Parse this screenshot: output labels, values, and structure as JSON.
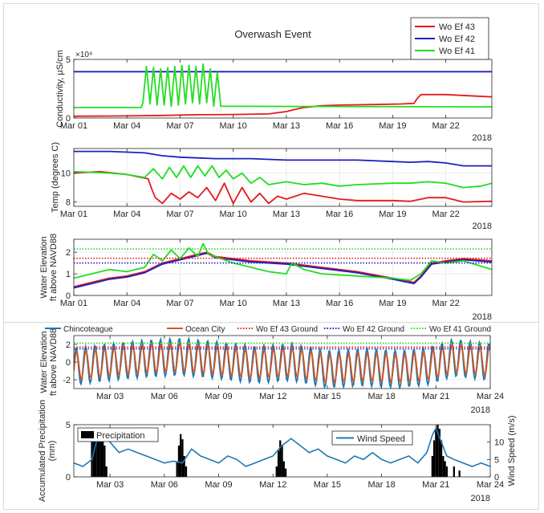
{
  "figure_title": "Overwash Event",
  "year_label": "2018",
  "colors": {
    "ef43": "#e31a1c",
    "ef42": "#1f1fbf",
    "ef41": "#22dd22",
    "chincoteague": "#1f77b4",
    "ocean_city": "#d95319",
    "precip": "#000000",
    "wind": "#1f77b4"
  },
  "chart_data": [
    {
      "id": "conductivity",
      "type": "line",
      "title": "Overwash Event",
      "ylabel": "Conductivity, μS/cm",
      "exponent_label": "×10⁴",
      "ylim": [
        0,
        5
      ],
      "yticks": [
        0,
        5
      ],
      "xlim": [
        0,
        23.6
      ],
      "xticks": [
        0,
        3,
        6,
        9,
        12,
        15,
        18,
        21
      ],
      "xticklabels": [
        "Mar 01",
        "Mar 04",
        "Mar 07",
        "Mar 10",
        "Mar 13",
        "Mar 16",
        "Mar 19",
        "Mar 22"
      ],
      "grid": false,
      "legend": {
        "position": "top-right",
        "entries": [
          "Wo Ef 43",
          "Wo Ef 42",
          "Wo Ef 41"
        ]
      },
      "series": [
        {
          "name": "Wo Ef 43",
          "color_key": "ef43",
          "x": [
            0,
            3,
            5,
            7,
            9,
            11,
            11.5,
            12,
            12.5,
            13,
            14,
            15,
            17,
            18.5,
            19.2,
            19.4,
            19.6,
            21,
            23.6
          ],
          "y": [
            0.15,
            0.18,
            0.22,
            0.28,
            0.3,
            0.35,
            0.45,
            0.55,
            0.75,
            0.9,
            1.05,
            1.1,
            1.15,
            1.2,
            1.25,
            1.7,
            2.0,
            2.0,
            1.8
          ]
        },
        {
          "name": "Wo Ef 42",
          "color_key": "ef42",
          "x": [
            0,
            23.6
          ],
          "y": [
            3.95,
            3.95
          ]
        },
        {
          "name": "Wo Ef 41",
          "color_key": "ef41",
          "x": [
            0,
            3.8,
            3.9,
            4.1,
            4.3,
            4.5,
            4.7,
            4.9,
            5.1,
            5.3,
            5.5,
            5.7,
            5.9,
            6.1,
            6.3,
            6.5,
            6.7,
            6.9,
            7.1,
            7.3,
            7.5,
            7.7,
            7.9,
            8.1,
            8.3,
            8.5,
            9,
            23.6
          ],
          "y": [
            0.9,
            0.9,
            1.3,
            4.4,
            1.2,
            4.3,
            1.1,
            4.2,
            1.1,
            4.3,
            1.0,
            4.4,
            1.1,
            4.5,
            1.2,
            4.5,
            1.3,
            4.4,
            1.2,
            4.6,
            1.3,
            4.2,
            1.0,
            3.9,
            1.0,
            1.0,
            1.0,
            0.95
          ]
        }
      ]
    },
    {
      "id": "temperature",
      "type": "line",
      "ylabel": "Temp (degrees C)",
      "ylim": [
        7.7,
        11.7
      ],
      "yticks": [
        8,
        10
      ],
      "xlim": [
        0,
        23.6
      ],
      "xticks": [
        0,
        3,
        6,
        9,
        12,
        15,
        18,
        21
      ],
      "xticklabels": [
        "Mar 01",
        "Mar 04",
        "Mar 07",
        "Mar 10",
        "Mar 13",
        "Mar 16",
        "Mar 19",
        "Mar 22"
      ],
      "grid": true,
      "series": [
        {
          "name": "Wo Ef 43",
          "color_key": "ef43",
          "x": [
            0,
            1.5,
            3,
            4.2,
            4.4,
            4.6,
            5,
            5.5,
            6,
            6.5,
            7,
            7.5,
            8,
            8.5,
            9,
            9.5,
            10,
            10.5,
            11,
            11.5,
            12,
            13,
            14,
            15,
            16,
            18,
            19,
            20,
            21,
            22,
            23.6
          ],
          "y": [
            10.0,
            10.1,
            9.9,
            9.6,
            8.9,
            8.3,
            7.9,
            8.6,
            8.2,
            8.7,
            8.3,
            9.0,
            8.1,
            9.3,
            7.9,
            9.0,
            8.0,
            8.6,
            7.9,
            8.4,
            8.2,
            8.6,
            8.4,
            8.2,
            8.1,
            8.1,
            8.05,
            8.3,
            8.3,
            8.0,
            8.05
          ]
        },
        {
          "name": "Wo Ef 42",
          "color_key": "ef42",
          "x": [
            0,
            2,
            4,
            5,
            6,
            8,
            10,
            12,
            14,
            16,
            18,
            19,
            20,
            21,
            22,
            23.6
          ],
          "y": [
            11.5,
            11.5,
            11.4,
            11.2,
            11.1,
            11.0,
            11.0,
            10.9,
            10.9,
            10.9,
            10.8,
            10.75,
            10.8,
            10.7,
            10.5,
            10.5
          ]
        },
        {
          "name": "Wo Ef 41",
          "color_key": "ef41",
          "x": [
            0,
            2,
            3,
            4,
            4.5,
            5,
            5.4,
            5.8,
            6.2,
            6.6,
            7,
            7.4,
            7.8,
            8.2,
            8.6,
            9,
            9.5,
            10,
            10.5,
            11,
            12,
            13,
            14,
            15,
            16,
            18,
            19,
            20,
            21,
            22,
            23,
            23.6
          ],
          "y": [
            10.1,
            10.0,
            9.9,
            9.7,
            10.3,
            9.6,
            10.4,
            9.7,
            10.5,
            9.7,
            10.5,
            9.8,
            10.5,
            9.7,
            10.2,
            9.6,
            10.0,
            9.3,
            9.7,
            9.2,
            9.4,
            9.2,
            9.3,
            9.1,
            9.2,
            9.3,
            9.3,
            9.4,
            9.3,
            9.0,
            9.1,
            9.3
          ]
        }
      ]
    },
    {
      "id": "water_elevation_wells",
      "type": "line",
      "ylabel": "Water Elevation",
      "ylabel2": "ft above NAVD88",
      "ylim": [
        0,
        2.6
      ],
      "yticks": [
        0,
        1,
        2
      ],
      "xlim": [
        0,
        23.6
      ],
      "xticks": [
        0,
        3,
        6,
        9,
        12,
        15,
        18,
        21
      ],
      "xticklabels": [
        "Mar 01",
        "Mar 04",
        "Mar 07",
        "Mar 10",
        "Mar 13",
        "Mar 16",
        "Mar 19",
        "Mar 22"
      ],
      "grid": true,
      "series": [
        {
          "name": "Wo Ef 43",
          "color_key": "ef43",
          "x": [
            0,
            1,
            2,
            3,
            4,
            4.5,
            5,
            6,
            7,
            7.5,
            8,
            10,
            12,
            14,
            16,
            18,
            19.2,
            19.6,
            20.2,
            21,
            22,
            23.6
          ],
          "y": [
            0.4,
            0.6,
            0.8,
            0.9,
            1.1,
            1.3,
            1.5,
            1.7,
            1.9,
            2.0,
            1.8,
            1.6,
            1.5,
            1.3,
            1.1,
            0.8,
            0.6,
            0.9,
            1.5,
            1.6,
            1.7,
            1.6
          ]
        },
        {
          "name": "Wo Ef 42",
          "color_key": "ef42",
          "x": [
            0,
            1,
            2,
            3,
            4,
            4.5,
            5,
            6,
            7,
            7.5,
            8,
            10,
            12,
            14,
            16,
            18,
            19.2,
            19.6,
            20.2,
            21,
            22,
            23.6
          ],
          "y": [
            0.35,
            0.55,
            0.75,
            0.85,
            1.05,
            1.25,
            1.45,
            1.65,
            1.85,
            1.95,
            1.75,
            1.55,
            1.45,
            1.25,
            1.05,
            0.75,
            0.55,
            0.85,
            1.45,
            1.55,
            1.65,
            1.55
          ]
        },
        {
          "name": "Wo Ef 41",
          "color_key": "ef41",
          "x": [
            0,
            1,
            2,
            3,
            4,
            4.5,
            5,
            5.5,
            6,
            6.5,
            7,
            7.3,
            7.6,
            8,
            9,
            10,
            11,
            12,
            12.3,
            13,
            14,
            16,
            18,
            19,
            19.6,
            20.2,
            21,
            22,
            23.6
          ],
          "y": [
            0.8,
            1.0,
            1.2,
            1.1,
            1.3,
            1.9,
            1.6,
            2.1,
            1.7,
            2.2,
            1.8,
            2.4,
            1.9,
            1.8,
            1.5,
            1.3,
            1.1,
            1.0,
            1.5,
            1.2,
            1.0,
            0.9,
            0.8,
            0.7,
            1.0,
            1.6,
            1.5,
            1.6,
            1.2
          ]
        },
        {
          "name": "Wo Ef 43 Ground",
          "color_key": "ef43",
          "dashed": true,
          "x": [
            0,
            23.6
          ],
          "y": [
            1.72,
            1.72
          ]
        },
        {
          "name": "Wo Ef 42 Ground",
          "color_key": "ef42",
          "dashed": true,
          "x": [
            0,
            23.6
          ],
          "y": [
            1.5,
            1.5
          ]
        },
        {
          "name": "Wo Ef 41 Ground",
          "color_key": "ef41",
          "dashed": true,
          "x": [
            0,
            23.6
          ],
          "y": [
            2.15,
            2.15
          ]
        }
      ]
    },
    {
      "id": "water_elevation_tides",
      "type": "line",
      "ylabel": "Water Elevation",
      "ylabel2": "ft above NAVD88",
      "ylim": [
        -3,
        3
      ],
      "yticks": [
        -2,
        0,
        2
      ],
      "xlim": [
        0,
        23
      ],
      "xticks": [
        2,
        5,
        8,
        11,
        14,
        17,
        20,
        23
      ],
      "xticklabels": [
        "Mar 03",
        "Mar 06",
        "Mar 09",
        "Mar 12",
        "Mar 15",
        "Mar 18",
        "Mar 21",
        "Mar 24"
      ],
      "grid": true,
      "legend": {
        "position": "top",
        "entries": [
          "Chincoteague",
          "Ocean City",
          "Wo Ef 43 Ground",
          "Wo Ef 42 Ground",
          "Wo Ef 41 Ground"
        ]
      },
      "tide_model": {
        "cycles_per_day": 1.93,
        "time_step_days": 0.05,
        "mean_days": [
          0,
          2,
          4,
          6,
          8,
          10,
          12,
          14,
          16,
          18,
          19.5,
          21,
          23
        ],
        "mean_values": [
          -0.5,
          0.0,
          0.4,
          0.6,
          0.2,
          -0.3,
          0.0,
          -0.8,
          -0.6,
          -0.8,
          -0.5,
          0.5,
          0.0
        ],
        "chincoteague_amplitude": 2.1,
        "ocean_city_amplitude": 1.6
      },
      "series": [
        {
          "name": "Chincoteague",
          "color_key": "chincoteague"
        },
        {
          "name": "Ocean City",
          "color_key": "ocean_city"
        },
        {
          "name": "Wo Ef 43 Ground",
          "color_key": "ef43",
          "dashed": true,
          "x": [
            0,
            23
          ],
          "y": [
            1.7,
            1.7
          ]
        },
        {
          "name": "Wo Ef 42 Ground",
          "color_key": "ef42",
          "dashed": true,
          "x": [
            0,
            23
          ],
          "y": [
            1.5,
            1.5
          ]
        },
        {
          "name": "Wo Ef 41 Ground",
          "color_key": "ef41",
          "dashed": true,
          "x": [
            0,
            23
          ],
          "y": [
            2.15,
            2.15
          ]
        }
      ]
    },
    {
      "id": "precip_wind",
      "type": "bar",
      "ylabel": "Accumulated Precipitation",
      "ylabel2": "(mm)",
      "ylabel_right": "Wind Speed (m/s)",
      "ylim": [
        0,
        5
      ],
      "yticks": [
        0,
        5
      ],
      "ylim_right": [
        0,
        15
      ],
      "yticks_right": [
        0,
        5,
        10
      ],
      "xlim": [
        0,
        23
      ],
      "xticks": [
        2,
        5,
        8,
        11,
        14,
        17,
        20,
        23
      ],
      "xticklabels": [
        "Mar 03",
        "Mar 06",
        "Mar 09",
        "Mar 12",
        "Mar 15",
        "Mar 18",
        "Mar 21",
        "Mar 24"
      ],
      "grid": false,
      "legend_precip": "Precipitation",
      "legend_wind": "Wind Speed",
      "precip": {
        "x": [
          1.0,
          1.1,
          1.2,
          1.3,
          1.4,
          1.5,
          1.6,
          1.7,
          1.8,
          5.7,
          5.8,
          5.9,
          6.0,
          6.1,
          6.2,
          11.2,
          11.3,
          11.4,
          11.5,
          11.6,
          11.7,
          19.8,
          19.9,
          20.0,
          20.1,
          20.2,
          20.3,
          20.4,
          20.5,
          20.6,
          21.0,
          21.3
        ],
        "y": [
          4.0,
          4.2,
          3.5,
          4.5,
          4.0,
          3.8,
          3.5,
          3.0,
          1.0,
          1.5,
          3.0,
          4.1,
          3.6,
          2.0,
          1.0,
          1.0,
          2.5,
          3.5,
          3.0,
          1.5,
          0.8,
          2.0,
          3.5,
          4.5,
          5.0,
          4.6,
          3.5,
          2.0,
          1.5,
          1.0,
          1.0,
          0.6
        ]
      },
      "wind": {
        "x": [
          0,
          0.5,
          1,
          1.3,
          1.6,
          2,
          2.5,
          3,
          3.5,
          4,
          4.5,
          5,
          5.5,
          6,
          6.5,
          7,
          7.5,
          8,
          8.5,
          9,
          9.5,
          10,
          10.5,
          11,
          11.5,
          12,
          12.5,
          13,
          13.5,
          14,
          14.5,
          15,
          15.5,
          16,
          16.5,
          17,
          17.5,
          18,
          18.5,
          19,
          19.5,
          19.8,
          20,
          20.3,
          20.6,
          21,
          21.5,
          22,
          22.5,
          23
        ],
        "y": [
          4,
          3,
          5,
          11,
          12,
          10,
          7,
          8,
          7,
          6,
          5,
          4,
          4.5,
          4,
          8,
          6,
          5,
          4,
          6,
          5,
          3,
          4,
          5,
          6,
          9,
          11,
          9,
          7,
          8,
          6,
          5,
          4,
          6,
          5,
          7,
          5,
          4,
          5,
          6,
          4,
          7,
          12,
          14,
          10,
          6,
          5,
          4,
          3,
          4,
          3
        ]
      }
    }
  ]
}
